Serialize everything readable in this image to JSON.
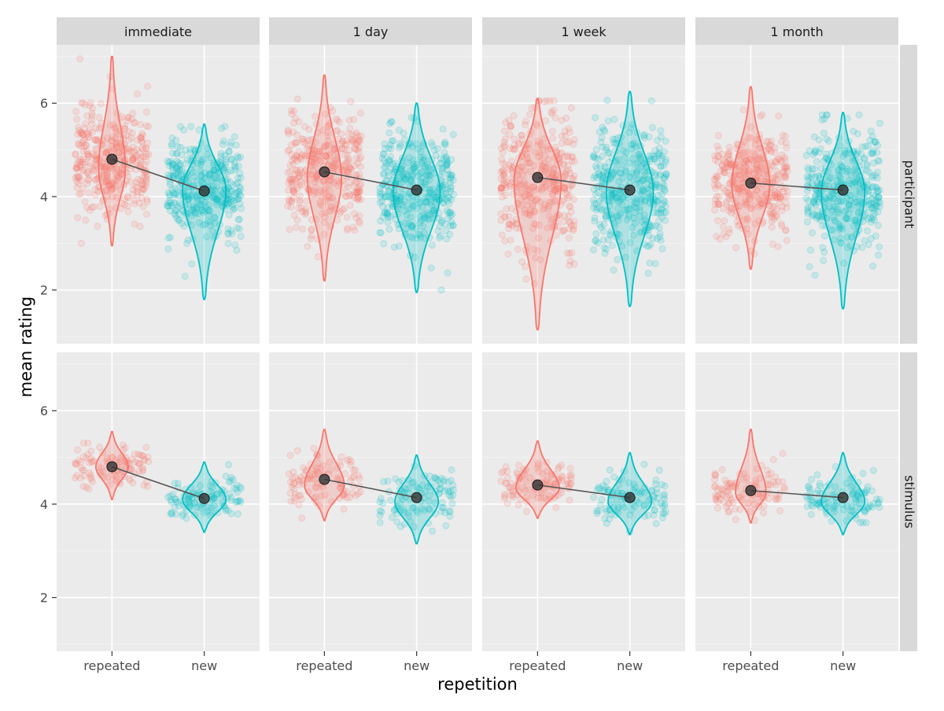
{
  "chart_data": {
    "type": "violin",
    "xlabel": "repetition",
    "ylabel": "mean rating",
    "categories": [
      "repeated",
      "new"
    ],
    "columns": [
      "immediate",
      "1 day",
      "1 week",
      "1 month"
    ],
    "rows": [
      "participant",
      "stimulus"
    ],
    "ylim": [
      0.85,
      7.25
    ],
    "yticks": [
      2,
      4,
      6
    ],
    "grid": true,
    "legend": "none",
    "colors": {
      "repeated": "#F8766D",
      "new": "#00BFC4",
      "mean": "#333333",
      "panel_bg": "#EBEBEB",
      "strip_bg": "#D9D9D9"
    },
    "panels": [
      {
        "row": "participant",
        "column": "immediate",
        "means": {
          "repeated": 4.8,
          "new": 4.12
        },
        "violins": {
          "repeated": {
            "range": [
              2.95,
              7.0
            ],
            "mode": 4.6,
            "width": 0.28,
            "n_points": 380
          },
          "new": {
            "range": [
              1.8,
              5.55
            ],
            "mode": 4.15,
            "width": 0.46,
            "n_points": 380
          }
        }
      },
      {
        "row": "participant",
        "column": "1 day",
        "means": {
          "repeated": 4.53,
          "new": 4.14
        },
        "violins": {
          "repeated": {
            "range": [
              2.2,
              6.6
            ],
            "mode": 4.4,
            "width": 0.36,
            "n_points": 380
          },
          "new": {
            "range": [
              1.95,
              6.0
            ],
            "mode": 4.1,
            "width": 0.5,
            "n_points": 380
          }
        }
      },
      {
        "row": "participant",
        "column": "1 week",
        "means": {
          "repeated": 4.41,
          "new": 4.14
        },
        "violins": {
          "repeated": {
            "range": [
              1.15,
              6.1
            ],
            "mode": 4.35,
            "width": 0.5,
            "n_points": 380
          },
          "new": {
            "range": [
              1.65,
              6.25
            ],
            "mode": 4.1,
            "width": 0.5,
            "n_points": 380
          }
        }
      },
      {
        "row": "participant",
        "column": "1 month",
        "means": {
          "repeated": 4.29,
          "new": 4.14
        },
        "violins": {
          "repeated": {
            "range": [
              2.45,
              6.35
            ],
            "mode": 4.25,
            "width": 0.4,
            "n_points": 380
          },
          "new": {
            "range": [
              1.6,
              5.8
            ],
            "mode": 4.1,
            "width": 0.46,
            "n_points": 380
          }
        }
      },
      {
        "row": "stimulus",
        "column": "immediate",
        "means": {
          "repeated": 4.8,
          "new": 4.12
        },
        "violins": {
          "repeated": {
            "range": [
              4.1,
              5.55
            ],
            "mode": 4.8,
            "width": 0.34,
            "n_points": 110
          },
          "new": {
            "range": [
              3.4,
              4.9
            ],
            "mode": 4.1,
            "width": 0.46,
            "n_points": 110
          }
        }
      },
      {
        "row": "stimulus",
        "column": "1 day",
        "means": {
          "repeated": 4.53,
          "new": 4.14
        },
        "violins": {
          "repeated": {
            "range": [
              3.65,
              5.6
            ],
            "mode": 4.4,
            "width": 0.42,
            "n_points": 110
          },
          "new": {
            "range": [
              3.15,
              5.05
            ],
            "mode": 4.05,
            "width": 0.46,
            "n_points": 110
          }
        }
      },
      {
        "row": "stimulus",
        "column": "1 week",
        "means": {
          "repeated": 4.41,
          "new": 4.14
        },
        "violins": {
          "repeated": {
            "range": [
              3.7,
              5.35
            ],
            "mode": 4.35,
            "width": 0.46,
            "n_points": 110
          },
          "new": {
            "range": [
              3.35,
              5.1
            ],
            "mode": 4.05,
            "width": 0.46,
            "n_points": 110
          }
        }
      },
      {
        "row": "stimulus",
        "column": "1 month",
        "means": {
          "repeated": 4.29,
          "new": 4.14
        },
        "violins": {
          "repeated": {
            "range": [
              3.6,
              5.6
            ],
            "mode": 4.25,
            "width": 0.32,
            "n_points": 110
          },
          "new": {
            "range": [
              3.35,
              5.1
            ],
            "mode": 4.05,
            "width": 0.46,
            "n_points": 110
          }
        }
      }
    ]
  }
}
